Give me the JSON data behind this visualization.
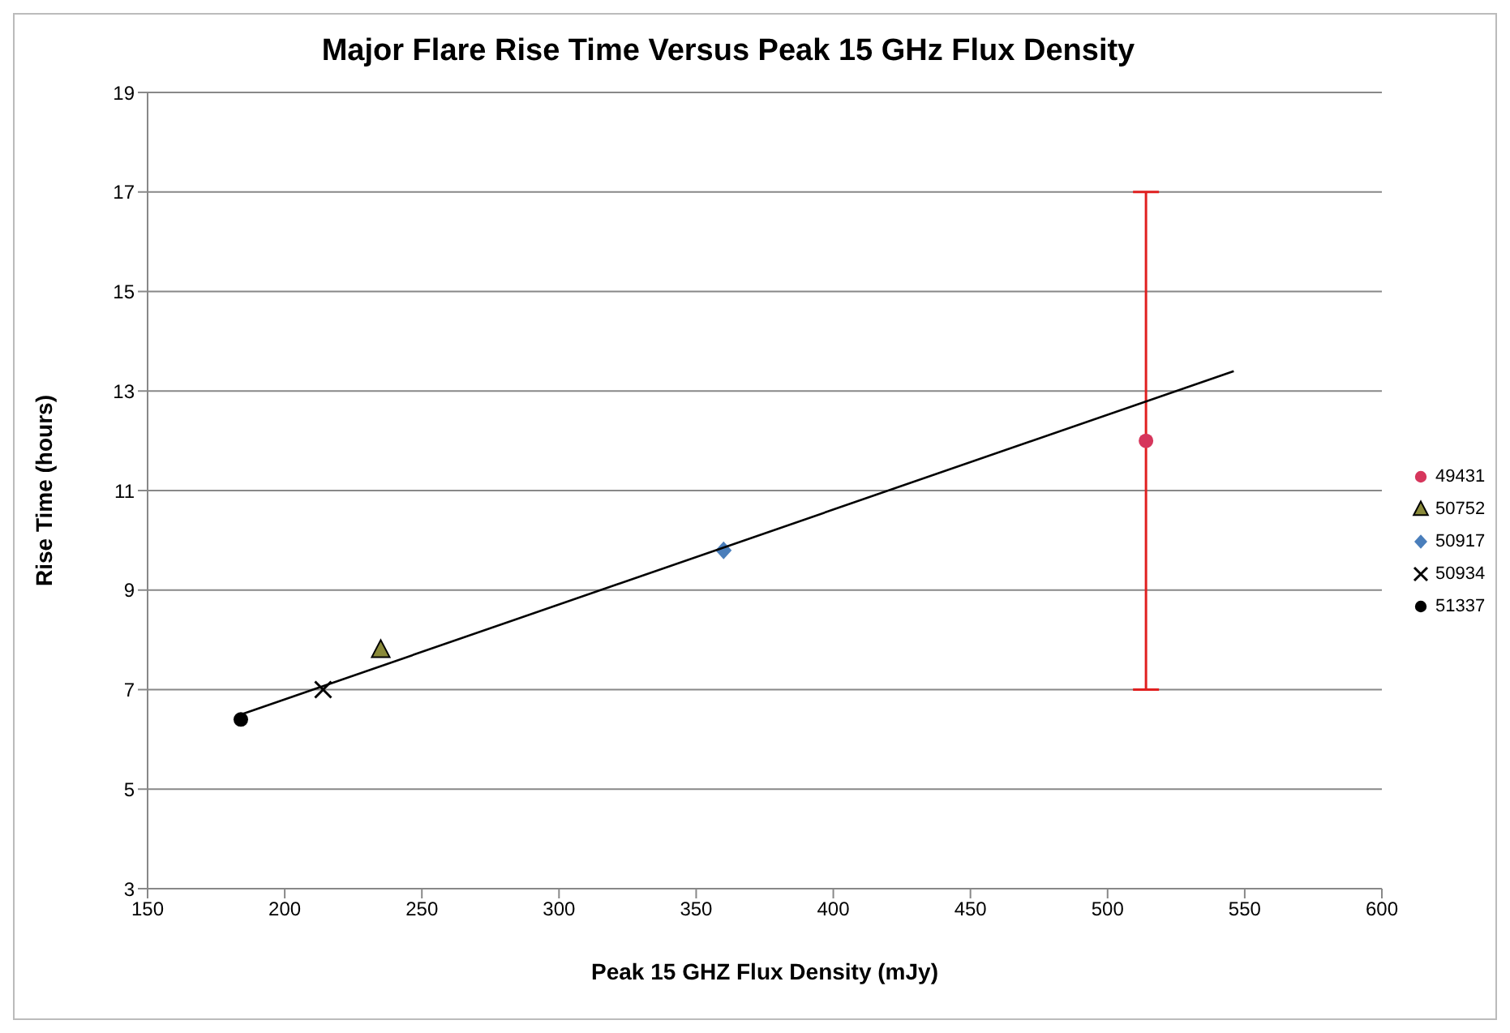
{
  "chart_data": {
    "type": "scatter",
    "title": "Major Flare Rise Time Versus Peak 15 GHz Flux Density",
    "xlabel": "Peak 15 GHZ Flux Density (mJy)",
    "ylabel": "Rise Time (hours)",
    "xlim": [
      150,
      600
    ],
    "xticks": [
      150,
      200,
      250,
      300,
      350,
      400,
      450,
      500,
      550,
      600
    ],
    "ylim": [
      3,
      19
    ],
    "yticks": [
      3,
      5,
      7,
      9,
      11,
      13,
      15,
      17,
      19
    ],
    "grid": "y",
    "legend": "right",
    "series": [
      {
        "name": "49431",
        "color": "#d6365c",
        "marker": "circle",
        "x": [
          514
        ],
        "values": [
          12
        ],
        "errors": [
          5
        ]
      },
      {
        "name": "50752",
        "color": "#8a8a3a",
        "marker": "triangle",
        "x": [
          235
        ],
        "values": [
          7.8
        ]
      },
      {
        "name": "50917",
        "color": "#4a7ebb",
        "marker": "diamond",
        "x": [
          360
        ],
        "values": [
          9.8
        ]
      },
      {
        "name": "50934",
        "color": "#000000",
        "marker": "cross",
        "x": [
          214
        ],
        "values": [
          7.0
        ]
      },
      {
        "name": "51337",
        "color": "#000000",
        "marker": "circle",
        "x": [
          184
        ],
        "values": [
          6.4
        ]
      },
      {
        "type": "line",
        "color": "#000000",
        "marker": "none",
        "x": [
          184,
          546
        ],
        "values": [
          6.5,
          13.4
        ]
      }
    ]
  }
}
